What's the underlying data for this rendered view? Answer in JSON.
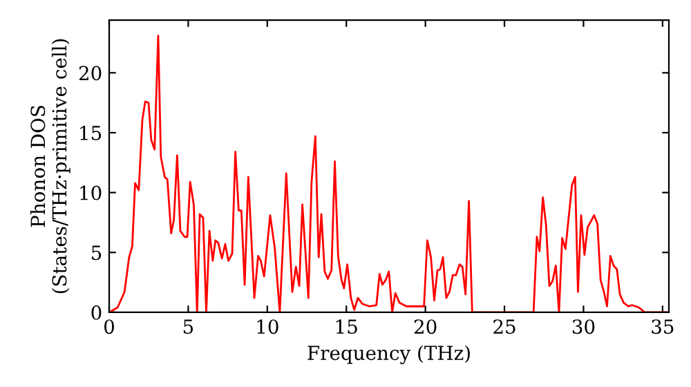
{
  "chart_data": {
    "type": "line",
    "xlabel": "Frequency (THz)",
    "ylabel": "Phonon DOS\n(States/THz·primitive cell)",
    "xlim": [
      0,
      35.4
    ],
    "ylim": [
      0,
      24.4
    ],
    "xticks": [
      0,
      5,
      10,
      15,
      20,
      25,
      30,
      35
    ],
    "yticks": [
      0,
      5,
      10,
      15,
      20
    ],
    "grid": false,
    "marker": "none",
    "line_style": "solid",
    "series": [
      {
        "color": "#ff0000",
        "x": [
          0,
          0.53,
          0.97,
          1.26,
          1.46,
          1.64,
          1.87,
          2.1,
          2.28,
          2.49,
          2.66,
          2.87,
          3.1,
          3.27,
          3.51,
          3.68,
          3.92,
          4.09,
          4.3,
          4.5,
          4.77,
          4.94,
          5.12,
          5.35,
          5.56,
          5.73,
          5.94,
          6.14,
          6.34,
          6.55,
          6.72,
          6.9,
          7.13,
          7.34,
          7.54,
          7.78,
          7.98,
          8.19,
          8.36,
          8.57,
          8.8,
          9.18,
          9.42,
          9.59,
          9.8,
          10.18,
          10.47,
          10.79,
          11.2,
          11.58,
          11.81,
          12.02,
          12.22,
          12.6,
          12.8,
          13.04,
          13.25,
          13.42,
          13.63,
          13.83,
          14.06,
          14.27,
          14.48,
          14.68,
          14.85,
          15.06,
          15.29,
          15.5,
          15.73,
          16.02,
          16.46,
          16.9,
          17.1,
          17.28,
          17.49,
          17.69,
          17.9,
          18.1,
          18.36,
          18.8,
          19.91,
          20.12,
          20.35,
          20.56,
          20.76,
          20.94,
          21.11,
          21.32,
          21.52,
          21.73,
          21.93,
          22.16,
          22.34,
          22.54,
          22.75,
          22.96,
          26.84,
          27.05,
          27.22,
          27.43,
          27.63,
          27.84,
          28.04,
          28.25,
          28.45,
          28.65,
          28.86,
          29.06,
          29.27,
          29.47,
          29.65,
          29.85,
          30.06,
          30.26,
          30.47,
          30.67,
          30.88,
          31.08,
          31.29,
          31.49,
          31.7,
          31.9,
          32.11,
          32.3,
          32.54,
          32.84,
          33.07,
          33.51,
          33.86,
          35.3
        ],
        "values": [
          0,
          0.4,
          1.7,
          4.6,
          5.5,
          10.8,
          10.2,
          16.1,
          17.6,
          17.5,
          14.4,
          13.6,
          23.1,
          13,
          11.3,
          11.1,
          6.6,
          7.7,
          13.1,
          6.8,
          6.3,
          6.3,
          10.9,
          9,
          0,
          8.2,
          7.9,
          0,
          6.8,
          4.3,
          6,
          5.8,
          4.5,
          5.7,
          4.3,
          4.9,
          13.4,
          8.5,
          8.5,
          2.3,
          11.3,
          1.2,
          4.7,
          4.3,
          3,
          8.1,
          5.4,
          0,
          11.6,
          1.7,
          3.8,
          2.2,
          9,
          1.2,
          10.9,
          14.7,
          4.6,
          8.2,
          3.4,
          2.8,
          3.5,
          12.6,
          4.7,
          2.8,
          2,
          4,
          1.2,
          0.2,
          1.2,
          0.7,
          0.5,
          0.6,
          3.2,
          2.3,
          2.7,
          3.4,
          0,
          1.6,
          0.8,
          0.5,
          0.5,
          6,
          4.6,
          1,
          3.5,
          3.6,
          4.6,
          1.2,
          1.7,
          3.1,
          3.1,
          4,
          3.8,
          1.5,
          9.3,
          0,
          0,
          6.3,
          5.1,
          9.6,
          7.3,
          2.2,
          2.6,
          3.9,
          0,
          6.2,
          5.3,
          7.9,
          10.6,
          11.3,
          1.7,
          8.1,
          4.8,
          7.1,
          7.6,
          8.1,
          7.4,
          2.7,
          1.7,
          0.5,
          4.7,
          3.9,
          3.6,
          1.5,
          0.8,
          0.5,
          0.6,
          0.4,
          0,
          0
        ]
      }
    ]
  }
}
